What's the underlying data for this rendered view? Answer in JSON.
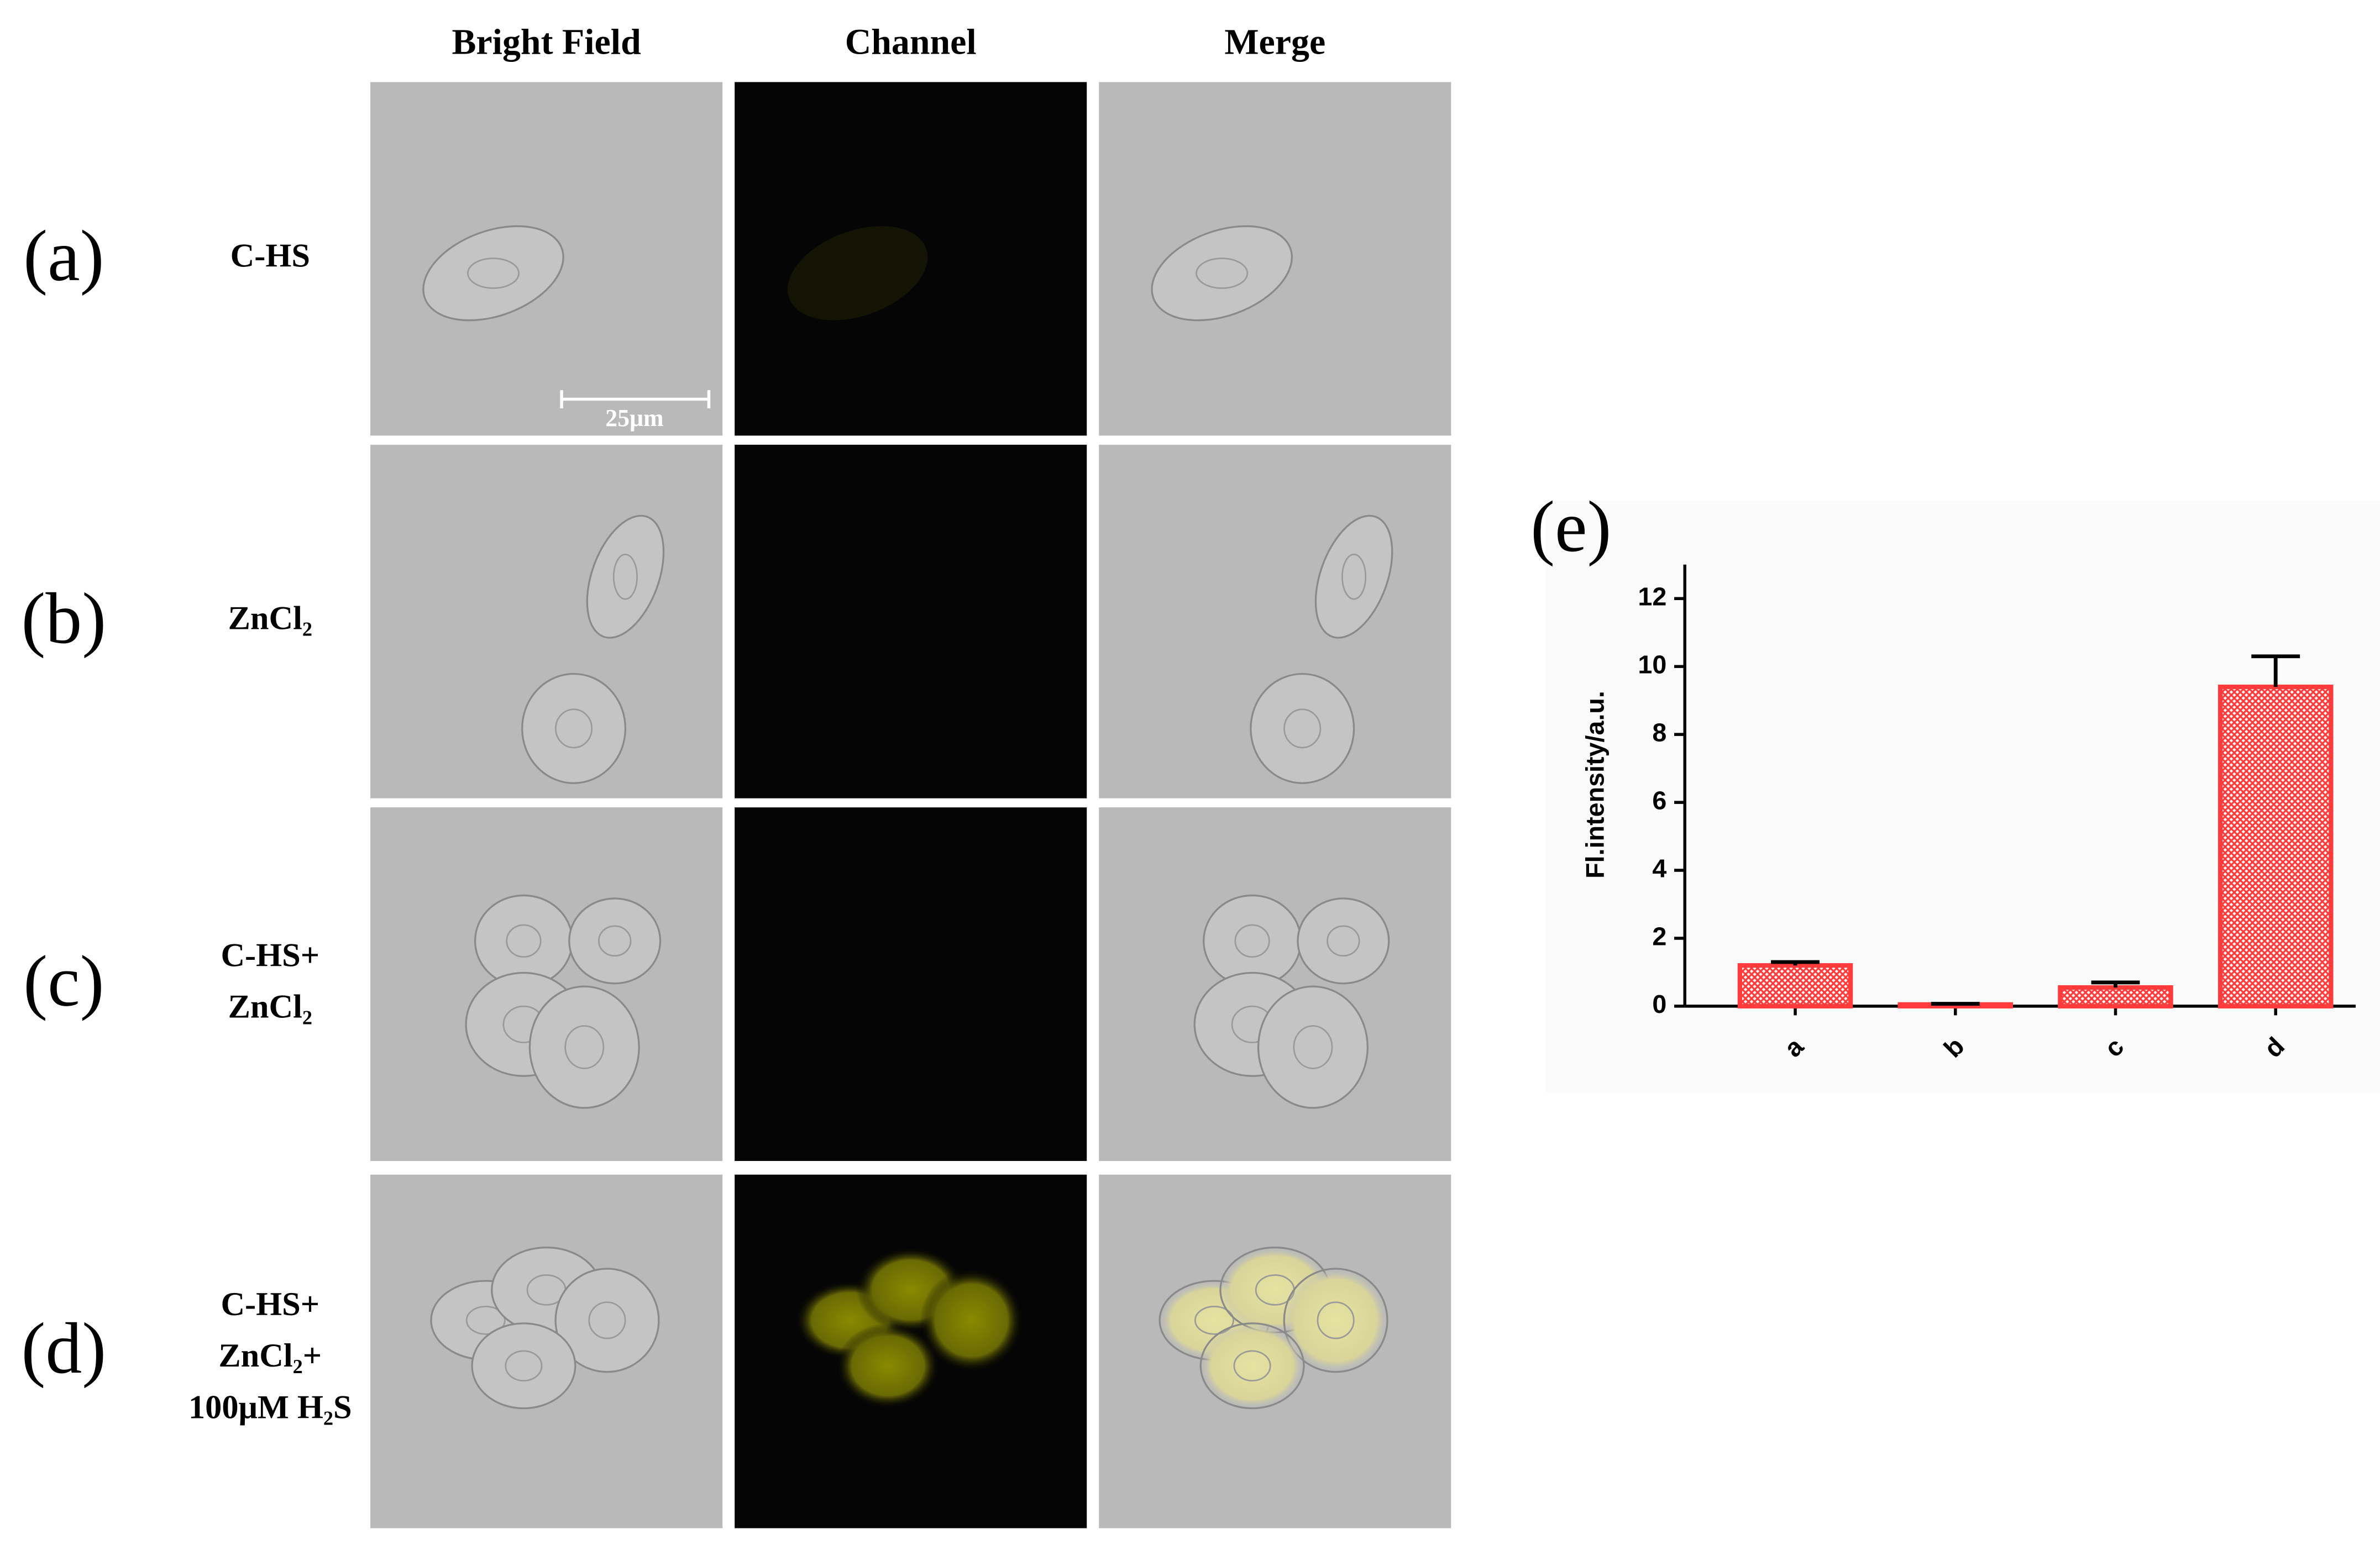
{
  "figure": {
    "columns": [
      "Bright Field",
      "Channel",
      "Merge"
    ],
    "rows": [
      {
        "panel": "(a)",
        "label": [
          "C-HS"
        ]
      },
      {
        "panel": "(b)",
        "label": [
          "ZnCl₂"
        ]
      },
      {
        "panel": "(c)",
        "label": [
          "C-HS+",
          "ZnCl₂"
        ]
      },
      {
        "panel": "(d)",
        "label": [
          "C-HS+",
          "ZnCl₂+",
          "100μM H₂S"
        ]
      }
    ],
    "scale_bar": "25μm"
  },
  "chart_data": {
    "type": "bar",
    "panel": "(e)",
    "y_label": "Fl.intensity/a.u.",
    "categories": [
      "a",
      "b",
      "c",
      "d"
    ],
    "values": [
      1.2,
      0.05,
      0.55,
      9.4
    ],
    "errors": [
      0.1,
      0.02,
      0.15,
      0.9
    ],
    "color": "#ff3b3b",
    "ylim": [
      0,
      13
    ],
    "yticks": [
      0,
      2,
      4,
      6,
      8,
      10,
      12
    ]
  }
}
